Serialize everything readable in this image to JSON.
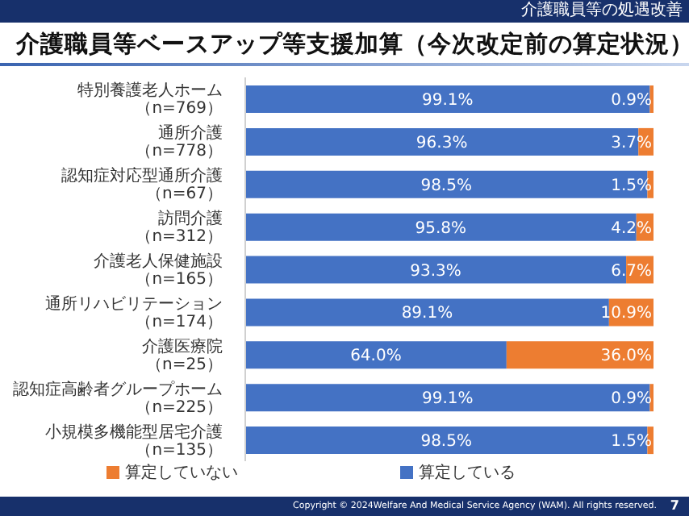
{
  "chart_data": {
    "type": "bar",
    "orientation": "horizontal",
    "stacked": true,
    "title": "介護職員等ベースアップ等支援加算（今次改定前の算定状況）",
    "categories": [
      "特別養護老人ホーム（n=769）",
      "通所介護（n=778）",
      "認知症対応型通所介護（n=67）",
      "訪問介護（n=312）",
      "介護老人保健施設（n=165）",
      "通所リハビリテーション（n=174）",
      "介護医療院（n=25）",
      "認知症高齢者グループホーム（n=225）",
      "小規模多機能型居宅介護（n=135）"
    ],
    "series": [
      {
        "name": "算定している",
        "color": "#4472c4",
        "values": [
          99.1,
          96.3,
          98.5,
          95.8,
          93.3,
          89.1,
          64.0,
          99.1,
          98.5
        ],
        "value_labels": [
          "99.1%",
          "96.3%",
          "98.5%",
          "95.8%",
          "93.3%",
          "89.1%",
          "64.0%",
          "99.1%",
          "98.5%"
        ]
      },
      {
        "name": "算定していない",
        "color": "#ed7d31",
        "values": [
          0.9,
          3.7,
          1.5,
          4.2,
          6.7,
          10.9,
          36.0,
          0.9,
          1.5
        ],
        "value_labels": [
          "0.9%",
          "3.7%",
          "1.5%",
          "4.2%",
          "6.7%",
          "10.9%",
          "36.0%",
          "0.9%",
          "1.5%"
        ]
      }
    ],
    "xlim": [
      0,
      100
    ],
    "tick_labels": "y",
    "legend": "bottom",
    "grid": false,
    "annotations": [
      "介護職員等の処遇改善",
      "Copyright © 2024Welfare And Medical Service Agency (WAM). All rights reserved.",
      "7"
    ]
  }
}
